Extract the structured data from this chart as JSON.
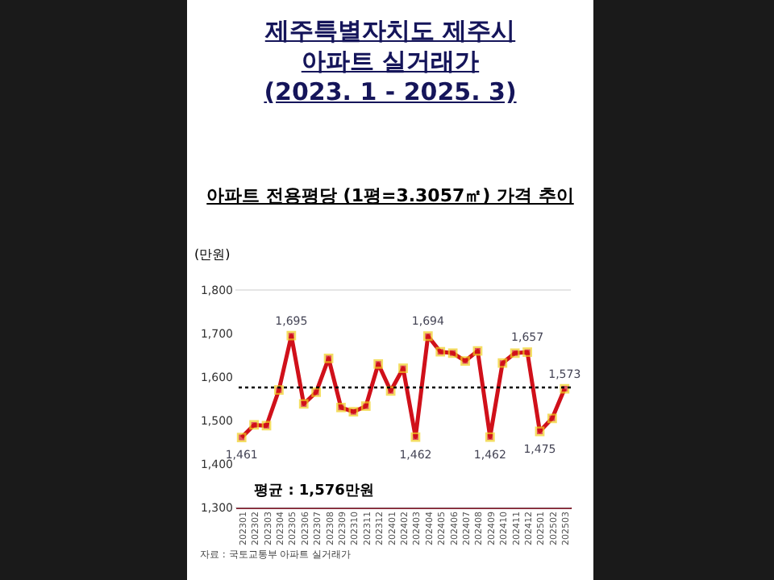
{
  "chart_data": {
    "type": "line",
    "title": "제주특별자치도 제주시\n아파트 실거래가\n(2023. 1 - 2025. 3)",
    "subtitle": "아파트 전용평당 (1평=3.3057㎡) 가격 추이",
    "ylabel": "(만원)",
    "categories": [
      "202301",
      "202302",
      "202303",
      "202304",
      "202305",
      "202306",
      "202307",
      "202308",
      "202309",
      "202310",
      "202311",
      "202312",
      "202401",
      "202402",
      "202403",
      "202404",
      "202405",
      "202406",
      "202407",
      "202408",
      "202409",
      "202410",
      "202411",
      "202412",
      "202501",
      "202502",
      "202503"
    ],
    "series": [
      {
        "color": "#d0101a",
        "values": [
          1461,
          1490,
          1488,
          1570,
          1695,
          1538,
          1565,
          1643,
          1530,
          1520,
          1533,
          1630,
          1568,
          1620,
          1462,
          1694,
          1658,
          1655,
          1637,
          1660,
          1462,
          1632,
          1655,
          1657,
          1475,
          1505,
          1573
        ],
        "value_labels": [
          "1,461",
          null,
          null,
          null,
          "1,695",
          null,
          null,
          null,
          null,
          null,
          null,
          null,
          null,
          null,
          "1,462",
          "1,694",
          null,
          null,
          null,
          null,
          "1,462",
          null,
          null,
          "1,657",
          "1,475",
          null,
          "1,573"
        ]
      }
    ],
    "ylim": [
      1300,
      1800
    ],
    "yticks": [
      {
        "value": 1300,
        "label": "1,300"
      },
      {
        "value": 1400,
        "label": "1,400"
      },
      {
        "value": 1500,
        "label": "1,500"
      },
      {
        "value": 1600,
        "label": "1,600"
      },
      {
        "value": 1700,
        "label": "1,700"
      },
      {
        "value": 1800,
        "label": "1,800"
      }
    ],
    "grid": false,
    "marker": "square",
    "line_style": "solid",
    "ref_lines": [
      {
        "axis": "y",
        "value": 1576,
        "label": "평균 : 1,576만원",
        "color": "#000000",
        "line_style": "dotted"
      }
    ],
    "annotations": [
      "자료 : 국토교통부 아파트 실거래가"
    ]
  }
}
